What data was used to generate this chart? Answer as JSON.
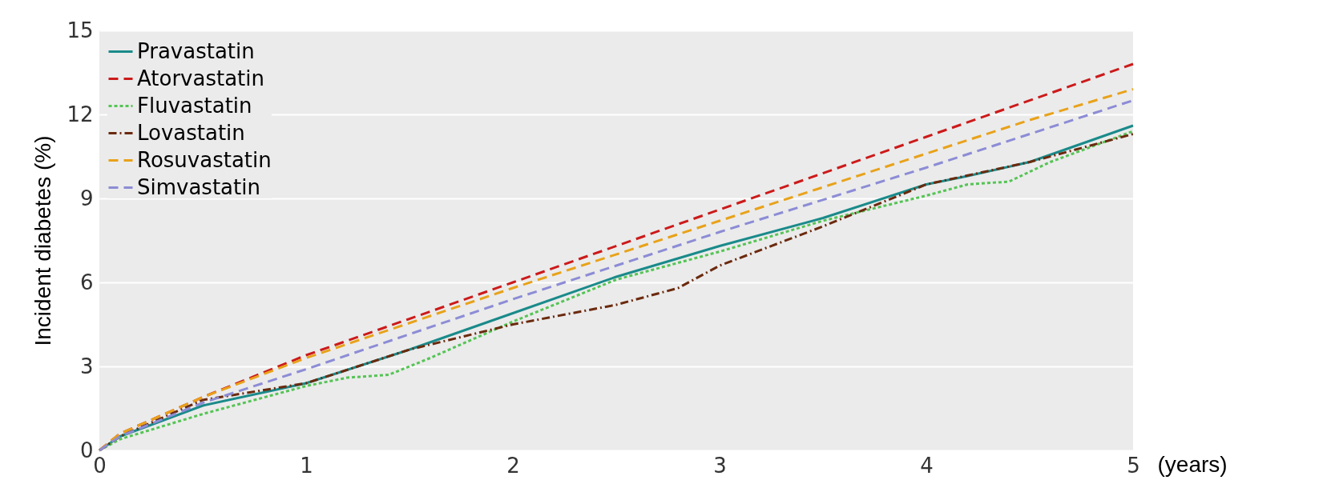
{
  "chart_data": {
    "type": "line",
    "xlabel": "(years)",
    "ylabel": "Incident diabetes (%)",
    "xlim": [
      0,
      5
    ],
    "xticks": [
      0,
      1,
      2,
      3,
      4,
      5
    ],
    "ylim": [
      0,
      15
    ],
    "yticks": [
      0,
      3,
      6,
      9,
      12,
      15
    ],
    "grid": "y",
    "legend": "top left",
    "series": [
      {
        "name": "Pravastatin",
        "color": "#1a8a8a",
        "line_style": "solid",
        "x": [
          0,
          0.1,
          0.5,
          1,
          1.5,
          2,
          2.5,
          3,
          3.5,
          4,
          4.2,
          4.5,
          5
        ],
        "values": [
          0,
          0.5,
          1.6,
          2.4,
          3.6,
          4.9,
          6.2,
          7.3,
          8.3,
          9.5,
          9.8,
          10.3,
          11.6
        ]
      },
      {
        "name": "Atorvastatin",
        "color": "#cc1a1a",
        "line_style": "dashed",
        "x": [
          0,
          0.1,
          0.5,
          1,
          2,
          3,
          4,
          5
        ],
        "values": [
          0,
          0.6,
          1.9,
          3.4,
          6.0,
          8.6,
          11.2,
          13.8
        ]
      },
      {
        "name": "Fluvastatin",
        "color": "#55c455",
        "line_style": "dotted",
        "x": [
          0,
          0.1,
          0.5,
          1,
          1.2,
          1.4,
          1.6,
          2,
          2.5,
          3,
          3.5,
          4,
          4.2,
          4.4,
          4.6,
          5
        ],
        "values": [
          0,
          0.4,
          1.3,
          2.3,
          2.6,
          2.7,
          3.3,
          4.6,
          6.1,
          7.1,
          8.2,
          9.1,
          9.5,
          9.6,
          10.3,
          11.4
        ]
      },
      {
        "name": "Lovastatin",
        "color": "#6b2a0e",
        "line_style": "dashdot",
        "x": [
          0,
          0.1,
          0.5,
          1,
          1.5,
          2,
          2.5,
          2.8,
          3,
          3.5,
          4,
          4.5,
          5
        ],
        "values": [
          0,
          0.5,
          1.8,
          2.4,
          3.6,
          4.5,
          5.2,
          5.8,
          6.6,
          8.0,
          9.5,
          10.3,
          11.3
        ]
      },
      {
        "name": "Rosuvastatin",
        "color": "#e8a21a",
        "line_style": "dashed",
        "x": [
          0,
          0.1,
          0.5,
          1,
          2,
          3,
          4,
          4.5,
          5
        ],
        "values": [
          0,
          0.6,
          1.9,
          3.3,
          5.8,
          8.2,
          10.6,
          11.8,
          12.9
        ]
      },
      {
        "name": "Simvastatin",
        "color": "#8c8cd6",
        "line_style": "dashed",
        "x": [
          0,
          0.1,
          0.5,
          1,
          2,
          3,
          4,
          5
        ],
        "values": [
          0,
          0.5,
          1.7,
          2.9,
          5.4,
          7.8,
          10.1,
          12.5
        ]
      }
    ]
  }
}
